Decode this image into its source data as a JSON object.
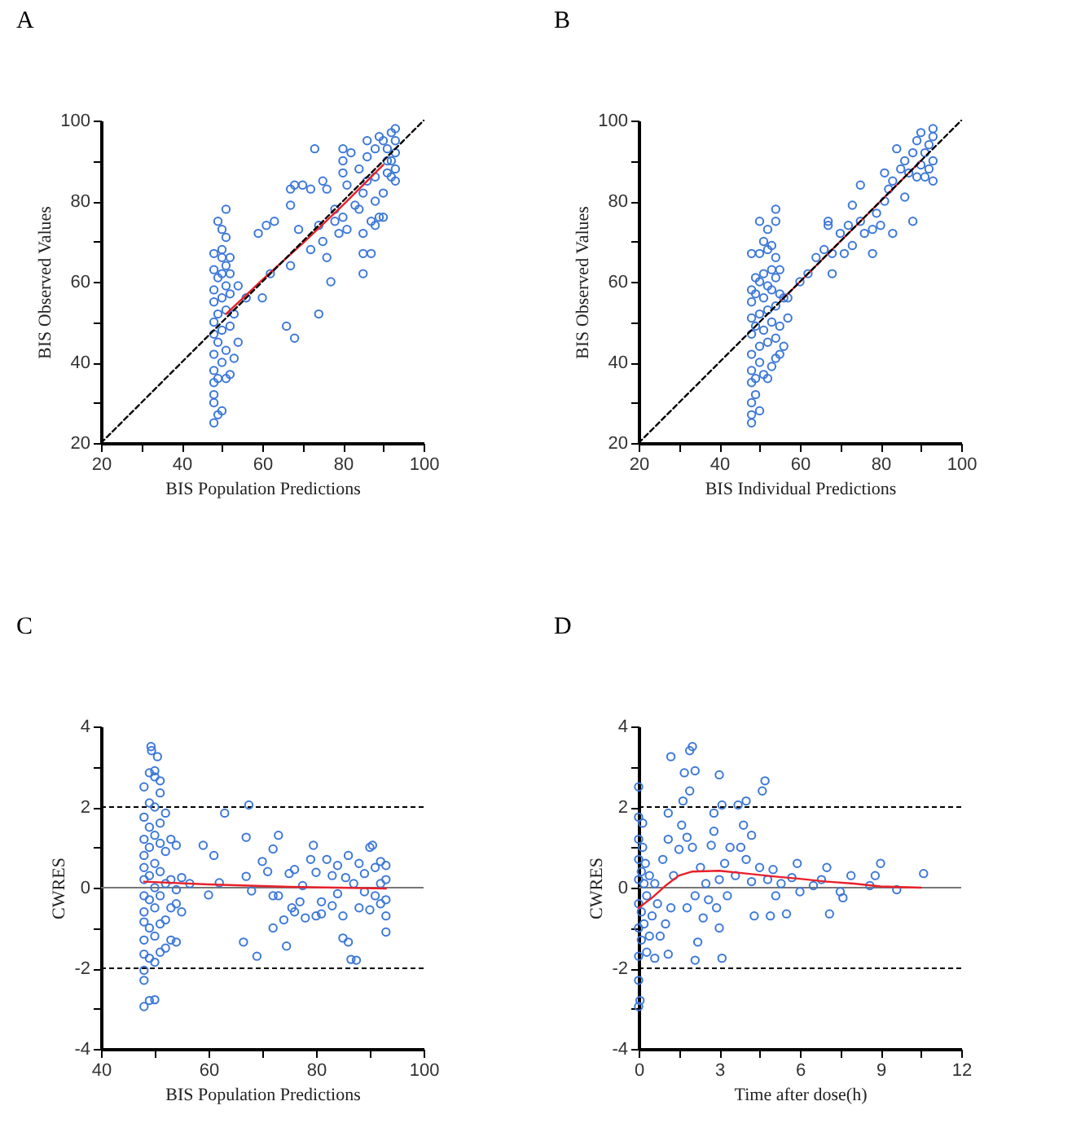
{
  "chart_data": [
    {
      "type": "scatter",
      "title": "A",
      "xlabel": "BIS Population Predictions",
      "ylabel": "BIS Observed Values",
      "xlim": [
        20,
        100
      ],
      "ylim": [
        20,
        100
      ],
      "xticks": [
        20,
        {
          "value": 30,
          "label": null
        },
        40,
        {
          "value": 50,
          "label": null
        },
        60,
        {
          "value": 70,
          "label": null
        },
        80,
        {
          "value": 90,
          "label": null
        },
        100
      ],
      "yticks": [
        20,
        {
          "value": 30,
          "label": null
        },
        40,
        {
          "value": 50,
          "label": null
        },
        60,
        {
          "value": 70,
          "label": null
        },
        80,
        {
          "value": 90,
          "label": null
        },
        100
      ],
      "series": [
        {
          "type": "scatter",
          "marker": "circle",
          "color": "#3c78d8",
          "x": [
            48,
            49,
            50,
            48,
            48,
            48,
            49,
            51,
            52,
            48,
            50,
            53,
            48,
            51,
            49,
            54,
            48,
            50,
            52,
            48,
            49,
            51,
            53,
            48,
            50,
            52,
            48,
            51,
            54,
            49,
            50,
            52,
            48,
            51,
            50,
            48,
            52,
            50,
            51,
            50,
            49,
            51,
            56,
            60,
            59,
            61,
            63,
            62,
            66,
            68,
            67,
            67,
            67,
            68,
            70,
            72,
            73,
            69,
            72,
            74,
            75,
            75,
            76,
            76,
            77,
            74,
            78,
            78,
            79,
            80,
            80,
            80,
            80,
            81,
            81,
            82,
            83,
            84,
            85,
            85,
            85,
            85,
            86,
            87,
            87,
            86,
            88,
            88,
            89,
            90,
            88,
            89,
            90,
            90,
            91,
            91,
            92,
            92,
            93,
            93,
            93,
            93,
            92,
            91,
            93,
            84,
            86,
            88
          ],
          "values": [
            25,
            27,
            28,
            30,
            32,
            35,
            36,
            36,
            37,
            38,
            40,
            41,
            42,
            43,
            45,
            45,
            47,
            48,
            49,
            50,
            52,
            53,
            52,
            55,
            56,
            57,
            58,
            59,
            59,
            61,
            62,
            62,
            63,
            64,
            66,
            67,
            66,
            68,
            71,
            73,
            75,
            78,
            56,
            56,
            72,
            74,
            75,
            62,
            49,
            46,
            64,
            79,
            83,
            84,
            84,
            83,
            93,
            73,
            68,
            74,
            85,
            70,
            83,
            66,
            60,
            52,
            78,
            75,
            72,
            76,
            87,
            93,
            90,
            73,
            84,
            92,
            79,
            78,
            62,
            67,
            82,
            72,
            85,
            67,
            75,
            91,
            74,
            80,
            76,
            76,
            93,
            96,
            95,
            82,
            87,
            93,
            90,
            97,
            98,
            85,
            92,
            88,
            86,
            90,
            95,
            88,
            95,
            86
          ]
        },
        {
          "type": "line",
          "color": "#e8202a",
          "x": [
            51,
            60,
            70,
            80,
            90
          ],
          "values": [
            52,
            60.5,
            69.5,
            79,
            89
          ]
        },
        {
          "type": "line",
          "color": "#000000",
          "line_style": "dashed",
          "x": [
            20,
            100
          ],
          "values": [
            20,
            100
          ]
        }
      ]
    },
    {
      "type": "scatter",
      "title": "B",
      "xlabel": "BIS Individual Predictions",
      "ylabel": "BIS Observed Values",
      "xlim": [
        20,
        100
      ],
      "ylim": [
        20,
        100
      ],
      "xticks": [
        20,
        {
          "value": 30,
          "label": null
        },
        40,
        {
          "value": 50,
          "label": null
        },
        60,
        {
          "value": 70,
          "label": null
        },
        80,
        {
          "value": 90,
          "label": null
        },
        100
      ],
      "yticks": [
        20,
        {
          "value": 30,
          "label": null
        },
        40,
        {
          "value": 50,
          "label": null
        },
        60,
        {
          "value": 70,
          "label": null
        },
        80,
        {
          "value": 90,
          "label": null
        },
        100
      ],
      "series": [
        {
          "type": "scatter",
          "marker": "circle",
          "color": "#3c78d8",
          "x": [
            48,
            48,
            48,
            49,
            50,
            48,
            49,
            51,
            52,
            53,
            48,
            50,
            54,
            55,
            56,
            48,
            50,
            52,
            54,
            48,
            49,
            51,
            53,
            55,
            57,
            48,
            50,
            52,
            54,
            56,
            57,
            48,
            49,
            51,
            53,
            55,
            48,
            50,
            52,
            54,
            55,
            49,
            51,
            53,
            48,
            50,
            52,
            53,
            54,
            51,
            52,
            50,
            54,
            54,
            60,
            62,
            64,
            66,
            67,
            67,
            68,
            68,
            70,
            71,
            72,
            73,
            73,
            75,
            75,
            76,
            78,
            78,
            79,
            80,
            81,
            81,
            82,
            83,
            83,
            84,
            85,
            86,
            86,
            88,
            87,
            88,
            89,
            90,
            90,
            91,
            92,
            93,
            93,
            93,
            92,
            91,
            93,
            89
          ],
          "values": [
            25,
            27,
            30,
            32,
            28,
            35,
            36,
            37,
            36,
            39,
            38,
            40,
            41,
            42,
            44,
            42,
            44,
            45,
            46,
            47,
            49,
            48,
            50,
            49,
            51,
            51,
            52,
            53,
            54,
            56,
            56,
            55,
            57,
            56,
            58,
            57,
            58,
            60,
            59,
            61,
            63,
            61,
            62,
            63,
            67,
            67,
            68,
            69,
            66,
            70,
            73,
            75,
            75,
            78,
            60,
            62,
            66,
            68,
            75,
            74,
            62,
            67,
            72,
            67,
            74,
            79,
            69,
            84,
            75,
            72,
            67,
            73,
            77,
            74,
            80,
            87,
            83,
            72,
            85,
            93,
            88,
            81,
            90,
            75,
            87,
            92,
            95,
            97,
            89,
            92,
            94,
            98,
            85,
            90,
            88,
            86,
            96,
            86
          ]
        },
        {
          "type": "line",
          "color": "#e8202a",
          "x": [
            55,
            65,
            75,
            85,
            90
          ],
          "values": [
            55,
            65,
            75,
            85,
            90
          ]
        },
        {
          "type": "line",
          "color": "#000000",
          "line_style": "dashed",
          "x": [
            20,
            100
          ],
          "values": [
            20,
            100
          ]
        }
      ]
    },
    {
      "type": "scatter",
      "title": "C",
      "xlabel": "BIS Population Predictions",
      "ylabel": "CWRES",
      "xlim": [
        40,
        100
      ],
      "ylim": [
        -4,
        4
      ],
      "xticks": [
        40,
        {
          "value": 50,
          "label": null
        },
        60,
        {
          "value": 70,
          "label": null
        },
        80,
        {
          "value": 90,
          "label": null
        },
        100
      ],
      "yticks": [
        -4,
        {
          "value": -3,
          "label": null
        },
        -2,
        {
          "value": -1,
          "label": null
        },
        0,
        {
          "value": 1,
          "label": null
        },
        2,
        {
          "value": 3,
          "label": null
        },
        4
      ],
      "ref_lines": [
        {
          "axis": "y",
          "value": 0,
          "color": "#777777",
          "line_style": "solid"
        },
        {
          "axis": "y",
          "value": 2,
          "color": "#000000",
          "line_style": "dashed"
        },
        {
          "axis": "y",
          "value": -2,
          "color": "#000000",
          "line_style": "dashed"
        }
      ],
      "series": [
        {
          "type": "scatter",
          "marker": "circle",
          "color": "#3c78d8",
          "x": [
            48,
            48,
            48,
            48,
            48,
            48,
            48,
            48,
            48,
            48,
            48,
            48,
            48,
            48,
            49,
            49,
            49,
            49,
            49,
            49,
            49,
            49,
            49,
            49.3,
            49.4,
            50,
            50,
            50,
            50,
            50,
            50,
            50,
            50,
            50,
            50,
            50.5,
            51,
            51,
            51,
            51,
            51,
            51,
            51,
            51,
            52,
            52,
            52,
            52,
            52,
            53,
            53,
            53,
            53,
            54,
            54,
            54,
            54,
            55,
            55,
            56.5,
            59,
            60,
            61,
            62,
            63,
            66.5,
            67,
            67,
            67.5,
            68,
            69,
            70,
            71,
            72,
            72,
            72,
            73,
            73,
            74,
            74.5,
            75,
            75.5,
            76,
            76,
            77,
            77.5,
            78,
            79,
            79.5,
            80,
            80,
            81,
            81,
            82,
            83,
            83,
            84,
            84,
            85,
            85,
            85.5,
            86,
            86,
            86.5,
            87,
            87.5,
            88,
            88,
            89,
            89,
            90,
            90,
            90.5,
            91,
            91,
            92,
            92,
            92,
            93,
            93,
            93,
            93,
            93
          ],
          "values": [
            -2.95,
            -2.3,
            -2.05,
            -1.65,
            -1.3,
            -0.85,
            -0.6,
            -0.2,
            0.2,
            0.5,
            0.8,
            1.2,
            1.75,
            2.5,
            -2.8,
            -1.75,
            -1.0,
            -0.3,
            0.3,
            1.0,
            1.5,
            2.1,
            2.85,
            3.5,
            3.4,
            -2.78,
            -1.85,
            -1.2,
            -0.5,
            0,
            0.6,
            1.3,
            2.0,
            2.75,
            2.9,
            3.25,
            -1.6,
            -0.9,
            -0.2,
            0.4,
            1.1,
            1.6,
            2.35,
            2.65,
            -1.5,
            -0.8,
            0.1,
            0.9,
            1.85,
            -1.3,
            -0.5,
            0.2,
            1.2,
            -1.35,
            -0.4,
            -0.05,
            1.05,
            -0.6,
            0.25,
            0.1,
            1.05,
            -0.18,
            0.8,
            0.12,
            1.85,
            -1.35,
            1.25,
            0.28,
            2.05,
            -0.08,
            -1.7,
            0.65,
            0.4,
            -1.0,
            0.96,
            -0.2,
            1.3,
            -0.2,
            -0.8,
            -1.45,
            0.35,
            -0.5,
            0.45,
            -0.6,
            -0.35,
            0.05,
            -0.75,
            0.7,
            1.05,
            -0.7,
            0.38,
            -0.65,
            -0.35,
            0.7,
            0.3,
            -0.45,
            0.55,
            -0.15,
            -0.7,
            -1.25,
            0.25,
            0.8,
            -1.35,
            -1.78,
            0.1,
            -1.8,
            -0.5,
            0.6,
            -0.1,
            0.35,
            1.0,
            -0.55,
            1.05,
            0.5,
            -0.2,
            0.1,
            0.65,
            -0.4,
            0.55,
            -0.7,
            -1.1,
            0.2,
            -0.3
          ]
        },
        {
          "type": "line",
          "color": "#e8202a",
          "x": [
            48,
            60,
            75,
            93
          ],
          "values": [
            0.15,
            0.08,
            0.02,
            -0.02
          ]
        }
      ]
    },
    {
      "type": "scatter",
      "title": "D",
      "xlabel": "Time after dose(h)",
      "ylabel": "CWRES",
      "xlim": [
        0,
        12
      ],
      "ylim": [
        -4,
        4
      ],
      "xticks": [
        0,
        {
          "value": 1.5,
          "label": null
        },
        3,
        {
          "value": 4.5,
          "label": null
        },
        6,
        {
          "value": 7.5,
          "label": null
        },
        9,
        {
          "value": 10.5,
          "label": null
        },
        12
      ],
      "yticks": [
        -4,
        {
          "value": -3,
          "label": null
        },
        -2,
        {
          "value": -1,
          "label": null
        },
        0,
        {
          "value": 1,
          "label": null
        },
        2,
        {
          "value": 3,
          "label": null
        },
        4
      ],
      "ref_lines": [
        {
          "axis": "y",
          "value": 0,
          "color": "#777777",
          "line_style": "solid"
        },
        {
          "axis": "y",
          "value": 2,
          "color": "#000000",
          "line_style": "dashed"
        },
        {
          "axis": "y",
          "value": -2,
          "color": "#000000",
          "line_style": "dashed"
        }
      ],
      "series": [
        {
          "type": "scatter",
          "marker": "circle",
          "color": "#3c78d8",
          "x": [
            0,
            0,
            0,
            0,
            0,
            0,
            0,
            0,
            0,
            0,
            0.05,
            0.1,
            0.1,
            0.1,
            0.15,
            0.15,
            0.2,
            0.2,
            0.25,
            0.3,
            0.3,
            0.4,
            0.4,
            0.5,
            0.6,
            0.6,
            0.7,
            0.8,
            0.9,
            1.0,
            1.1,
            1.1,
            1.1,
            1.2,
            1.2,
            1.3,
            1.5,
            1.6,
            1.65,
            1.7,
            1.8,
            1.8,
            1.9,
            1.9,
            2.0,
            2.0,
            2.1,
            2.1,
            2.1,
            2.2,
            2.3,
            2.4,
            2.5,
            2.6,
            2.7,
            2.8,
            2.8,
            2.9,
            3.0,
            3.0,
            3.0,
            3.1,
            3.1,
            3.2,
            3.3,
            3.4,
            3.6,
            3.7,
            3.8,
            3.9,
            4.0,
            4.0,
            4.2,
            4.2,
            4.3,
            4.5,
            4.6,
            4.7,
            4.8,
            4.9,
            5.0,
            5.1,
            5.3,
            5.5,
            5.7,
            5.9,
            6.0,
            6.5,
            6.8,
            7.0,
            7.1,
            7.5,
            7.6,
            7.9,
            8.6,
            8.8,
            9.0,
            9.6,
            10.6
          ],
          "values": [
            -2.95,
            -2.3,
            -1.7,
            -1.0,
            -0.4,
            0.2,
            0.7,
            1.2,
            1.75,
            2.5,
            -2.8,
            -1.3,
            -0.6,
            0.4,
            1.0,
            1.6,
            -0.9,
            0.1,
            0.6,
            -1.6,
            -0.2,
            0.3,
            -1.2,
            -0.7,
            -1.75,
            0.1,
            -0.4,
            -1.2,
            0.7,
            -0.9,
            1.2,
            1.85,
            -1.65,
            3.25,
            -0.5,
            0.3,
            0.95,
            1.55,
            2.15,
            2.85,
            -0.5,
            1.25,
            3.4,
            2.4,
            3.5,
            1.0,
            -1.8,
            2.9,
            -0.2,
            -1.35,
            0.5,
            -0.75,
            0.1,
            -0.3,
            1.05,
            1.4,
            1.85,
            -0.5,
            -1.0,
            2.8,
            0.2,
            -1.75,
            2.05,
            0.6,
            -0.2,
            1.0,
            0.3,
            2.05,
            1.0,
            1.55,
            2.15,
            0.7,
            0.15,
            1.3,
            -0.7,
            0.5,
            2.4,
            2.65,
            0.2,
            -0.7,
            0.45,
            -0.2,
            0.1,
            -0.65,
            0.25,
            0.6,
            -0.1,
            0.05,
            0.2,
            0.5,
            -0.65,
            -0.1,
            -0.25,
            0.3,
            0.05,
            0.3,
            0.6,
            -0.05,
            0.35
          ]
        },
        {
          "type": "line",
          "color": "#e8202a",
          "x": [
            0,
            0.5,
            1,
            1.5,
            2,
            3,
            4,
            5,
            6,
            7,
            8,
            9,
            10.5
          ],
          "values": [
            -0.5,
            -0.25,
            0.05,
            0.3,
            0.4,
            0.42,
            0.35,
            0.28,
            0.22,
            0.15,
            0.1,
            0.03,
            0
          ]
        }
      ]
    }
  ]
}
